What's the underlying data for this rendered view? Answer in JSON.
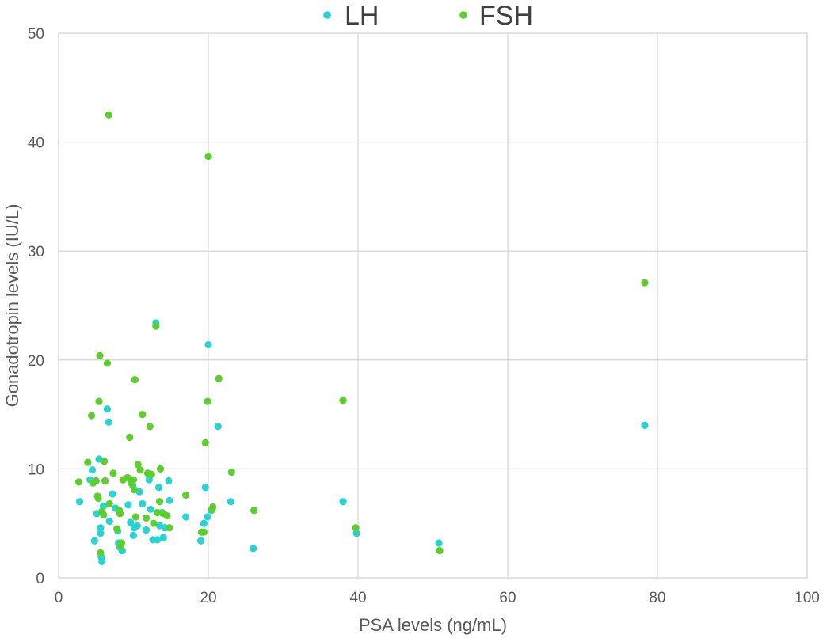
{
  "chart_data": {
    "type": "scatter",
    "xlabel": "PSA levels (ng/mL)",
    "ylabel": "Gonadotropin levels (IU/L)",
    "xlim": [
      0,
      100
    ],
    "ylim": [
      0,
      50
    ],
    "x_ticks": [
      0,
      20,
      40,
      60,
      80,
      100
    ],
    "y_ticks": [
      0,
      10,
      20,
      30,
      40,
      50
    ],
    "grid": true,
    "legend_position": "top",
    "series": [
      {
        "name": "LH",
        "color": "#27d3d3",
        "points": [
          [
            2.8,
            7.0
          ],
          [
            4.2,
            9.0
          ],
          [
            4.5,
            9.9
          ],
          [
            4.8,
            3.4
          ],
          [
            5.1,
            5.9
          ],
          [
            5.4,
            10.9
          ],
          [
            5.6,
            4.6
          ],
          [
            5.6,
            4.1
          ],
          [
            5.7,
            1.9
          ],
          [
            5.8,
            1.5
          ],
          [
            6.0,
            6.6
          ],
          [
            6.5,
            15.5
          ],
          [
            6.7,
            14.3
          ],
          [
            6.8,
            5.2
          ],
          [
            7.2,
            7.7
          ],
          [
            7.6,
            6.4
          ],
          [
            7.9,
            4.3
          ],
          [
            8.0,
            3.2
          ],
          [
            8.2,
            2.8
          ],
          [
            8.5,
            2.5
          ],
          [
            9.3,
            6.7
          ],
          [
            9.6,
            5.1
          ],
          [
            9.9,
            8.5
          ],
          [
            10.0,
            3.9
          ],
          [
            10.1,
            4.6
          ],
          [
            10.5,
            4.8
          ],
          [
            10.8,
            7.9
          ],
          [
            11.2,
            6.8
          ],
          [
            11.7,
            4.4
          ],
          [
            12.1,
            9.0
          ],
          [
            12.3,
            6.3
          ],
          [
            12.6,
            3.5
          ],
          [
            13.0,
            23.4
          ],
          [
            13.2,
            3.5
          ],
          [
            13.4,
            8.3
          ],
          [
            13.5,
            4.8
          ],
          [
            13.8,
            6.0
          ],
          [
            14.0,
            3.7
          ],
          [
            14.2,
            4.6
          ],
          [
            14.7,
            8.9
          ],
          [
            14.8,
            7.1
          ],
          [
            17.0,
            5.6
          ],
          [
            19.0,
            3.4
          ],
          [
            19.4,
            5.0
          ],
          [
            19.6,
            8.3
          ],
          [
            19.9,
            5.6
          ],
          [
            20.0,
            21.4
          ],
          [
            20.4,
            6.2
          ],
          [
            21.3,
            13.9
          ],
          [
            23.0,
            7.0
          ],
          [
            26.0,
            2.7
          ],
          [
            38.0,
            7.0
          ],
          [
            39.8,
            4.1
          ],
          [
            50.8,
            3.2
          ],
          [
            78.3,
            14.0
          ]
        ]
      },
      {
        "name": "FSH",
        "color": "#5ccf2c",
        "points": [
          [
            2.7,
            8.8
          ],
          [
            3.9,
            10.6
          ],
          [
            4.4,
            14.9
          ],
          [
            4.6,
            8.7
          ],
          [
            5.0,
            8.9
          ],
          [
            5.2,
            7.5
          ],
          [
            5.3,
            7.3
          ],
          [
            5.4,
            16.2
          ],
          [
            5.5,
            20.4
          ],
          [
            5.6,
            2.3
          ],
          [
            5.8,
            6.1
          ],
          [
            6.0,
            5.8
          ],
          [
            6.1,
            10.7
          ],
          [
            6.2,
            8.9
          ],
          [
            6.5,
            19.7
          ],
          [
            6.7,
            42.5
          ],
          [
            6.8,
            6.8
          ],
          [
            7.3,
            9.6
          ],
          [
            7.8,
            4.5
          ],
          [
            8.1,
            6.2
          ],
          [
            8.2,
            5.9
          ],
          [
            8.3,
            2.9
          ],
          [
            8.4,
            3.2
          ],
          [
            8.6,
            9.0
          ],
          [
            9.2,
            9.2
          ],
          [
            9.5,
            12.9
          ],
          [
            9.7,
            8.7
          ],
          [
            10.0,
            9.0
          ],
          [
            10.1,
            8.1
          ],
          [
            10.2,
            18.2
          ],
          [
            10.3,
            5.6
          ],
          [
            10.6,
            10.4
          ],
          [
            10.9,
            9.9
          ],
          [
            11.2,
            15.0
          ],
          [
            11.7,
            5.5
          ],
          [
            11.9,
            9.6
          ],
          [
            12.2,
            13.9
          ],
          [
            12.4,
            9.5
          ],
          [
            12.7,
            5.0
          ],
          [
            13.0,
            23.1
          ],
          [
            13.2,
            6.0
          ],
          [
            13.5,
            7.0
          ],
          [
            13.6,
            10.0
          ],
          [
            14.0,
            5.9
          ],
          [
            14.5,
            5.7
          ],
          [
            14.8,
            4.6
          ],
          [
            17.0,
            7.6
          ],
          [
            19.1,
            4.2
          ],
          [
            19.4,
            4.2
          ],
          [
            19.6,
            12.4
          ],
          [
            19.9,
            16.2
          ],
          [
            20.0,
            38.7
          ],
          [
            20.5,
            6.3
          ],
          [
            20.6,
            6.5
          ],
          [
            21.4,
            18.3
          ],
          [
            23.1,
            9.7
          ],
          [
            26.1,
            6.2
          ],
          [
            38.0,
            16.3
          ],
          [
            39.7,
            4.6
          ],
          [
            50.9,
            2.5
          ],
          [
            78.3,
            27.1
          ]
        ]
      }
    ]
  }
}
